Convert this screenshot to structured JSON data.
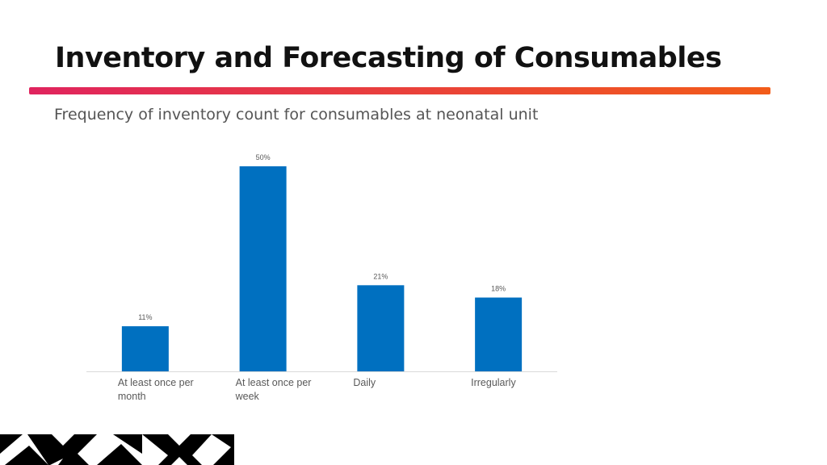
{
  "slide": {
    "title": "Inventory and Forecasting of Consumables",
    "subtitle": "Frequency of inventory count for consumables at neonatal unit"
  },
  "colors": {
    "bar": "#0070C0",
    "accent_start": "#E0245E",
    "accent_end": "#F25C19",
    "axis": "#D9D9D9",
    "data_label": "#595959",
    "decor": "#000000"
  },
  "chart_data": {
    "type": "bar",
    "title": "",
    "xlabel": "",
    "ylabel": "",
    "categories": [
      "At least once per month",
      "At least once per week",
      "Daily",
      "Irregularly"
    ],
    "values": [
      11,
      50,
      21,
      18
    ],
    "data_labels": [
      "11%",
      "50%",
      "21%",
      "18%"
    ],
    "unit": "%",
    "ylim": [
      0,
      50
    ],
    "grid": false,
    "legend": "none"
  }
}
